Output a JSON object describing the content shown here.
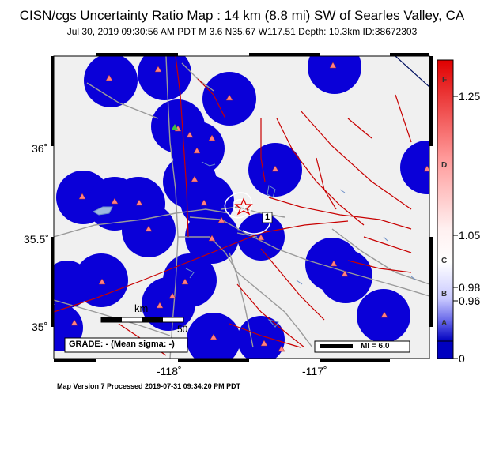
{
  "title": "CISN/cgs Uncertainty Ratio Map : 14 km (8.8 mi) SW of Searles Valley, CA",
  "subtitle": "Jul 30, 2019 09:30:56 AM PDT   M 3.6   N35.67 W117.51   Depth: 10.3km   ID:38672303",
  "footer": "Map Version 7 Processed 2019-07-31 09:34:20 PM PDT",
  "map": {
    "lat_labels": [
      "36˚",
      "35.5˚",
      "35˚"
    ],
    "lon_labels": [
      "-118˚",
      "-117˚"
    ],
    "scale_unit": "km",
    "scale_value": "50",
    "grade_text": "GRADE: - (Mean sigma: -)",
    "mi_text": "MI = 6.0",
    "contour_label": "1",
    "colors": {
      "station_blob": "#0a00d8",
      "station": "#ff8080",
      "fault": "#c80000",
      "road": "#9a9a9a",
      "water": "#6d8fc7",
      "background": "#f0f0f0"
    }
  },
  "colorbar": {
    "values": [
      "1.25",
      "1.05",
      "0.98",
      "0.96",
      "0"
    ],
    "grades": [
      "F",
      "D",
      "C",
      "B",
      "A"
    ],
    "colors": {
      "top": "#e00000",
      "bottom": "#0000c0"
    }
  }
}
